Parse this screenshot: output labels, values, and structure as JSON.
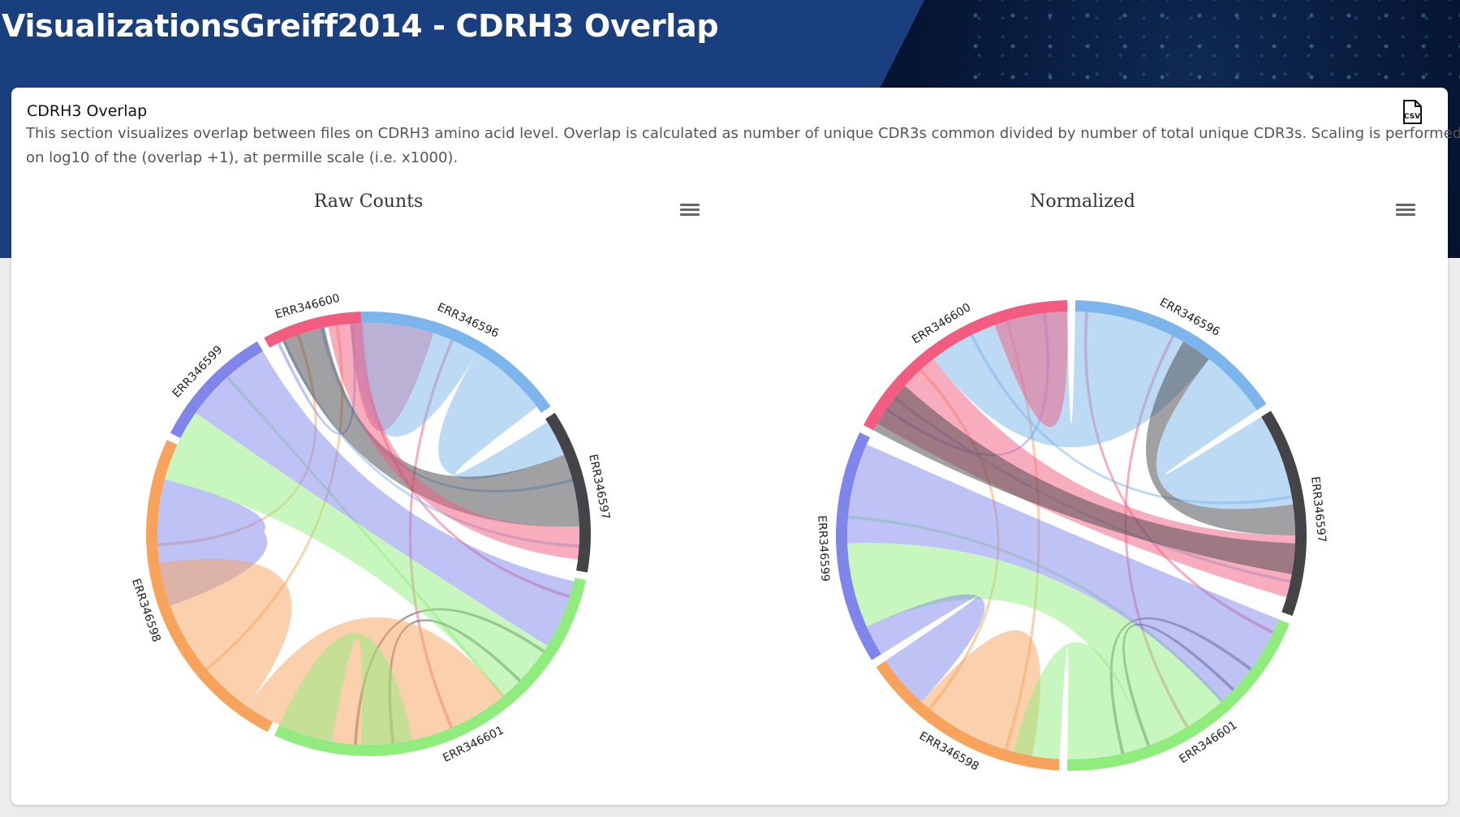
{
  "header": {
    "title": "VisualizationsGreiff2014 - CDRH3 Overlap"
  },
  "section": {
    "title": "CDRH3 Overlap",
    "description": "This section visualizes overlap between files on CDRH3 amino acid level. Overlap is calculated as number of unique CDR3s common divided by number of total unique CDR3s. Scaling is performed on log10 of the (overlap +1), at permille scale (i.e. x1000).",
    "csv_icon": "csv-file-icon",
    "menu_icon": "hamburger-menu-icon"
  },
  "colors": {
    "ERR346596": "#7cb5ec",
    "ERR346597": "#434348",
    "ERR346601": "#90ed7d",
    "ERR346598": "#f7a35c",
    "ERR346599": "#8085e9",
    "ERR346600": "#f15c80"
  },
  "chart_data": [
    {
      "type": "chord",
      "title": "Raw Counts",
      "nodes": [
        "ERR346596",
        "ERR346597",
        "ERR346601",
        "ERR346598",
        "ERR346599",
        "ERR346600"
      ],
      "arcs": [
        {
          "node": "ERR346596",
          "start": -5,
          "end": 55
        },
        {
          "node": "ERR346597",
          "start": 57,
          "end": 100
        },
        {
          "node": "ERR346601",
          "start": 102,
          "end": 205
        },
        {
          "node": "ERR346598",
          "start": 207,
          "end": 295
        },
        {
          "node": "ERR346599",
          "start": 297,
          "end": 330
        },
        {
          "node": "ERR346600",
          "start": 332,
          "end": 358
        }
      ],
      "links": [
        {
          "source": "ERR346596",
          "target": "ERR346596",
          "s": [
            -5,
            6
          ],
          "t": [
            6,
            18
          ],
          "color": "#f15c80"
        },
        {
          "source": "ERR346596",
          "target": "ERR346596",
          "s": [
            -5,
            30
          ],
          "t": [
            30,
            31
          ],
          "color": "#7cb5ec"
        },
        {
          "source": "ERR346596",
          "target": "ERR346597",
          "s": [
            31,
            53
          ],
          "t": [
            58,
            68
          ],
          "color": "#7cb5ec"
        },
        {
          "source": "ERR346597",
          "target": "ERR346600",
          "s": [
            68,
            88
          ],
          "t": [
            336,
            348
          ],
          "color": "#434348"
        },
        {
          "source": "ERR346600",
          "target": "ERR346597",
          "s": [
            349,
            358
          ],
          "t": [
            88,
            97
          ],
          "color": "#f15c80"
        },
        {
          "source": "ERR346599",
          "target": "ERR346601",
          "s": [
            305,
            330
          ],
          "t": [
            103,
            122
          ],
          "color": "#8085e9"
        },
        {
          "source": "ERR346601",
          "target": "ERR346599",
          "s": [
            122,
            140
          ],
          "t": [
            285,
            305
          ],
          "color": "#90ed7d"
        },
        {
          "source": "ERR346599",
          "target": "ERR346598",
          "s": [
            250,
            285
          ],
          "t": [
            262,
            282
          ],
          "color": "#8085e9"
        },
        {
          "source": "ERR346598",
          "target": "ERR346598",
          "s": [
            230,
            262
          ],
          "t": [
            215,
            230
          ],
          "color": "#f7a35c"
        },
        {
          "source": "ERR346598",
          "target": "ERR346601",
          "s": [
            182,
            215
          ],
          "t": [
            140,
            182
          ],
          "color": "#f7a35c"
        },
        {
          "source": "ERR346601",
          "target": "ERR346598",
          "s": [
            190,
            205
          ],
          "t": [
            168,
            182
          ],
          "color": "#90ed7d"
        }
      ]
    },
    {
      "type": "chord",
      "title": "Normalized",
      "nodes": [
        "ERR346596",
        "ERR346597",
        "ERR346601",
        "ERR346598",
        "ERR346599",
        "ERR346600"
      ],
      "arcs": [
        {
          "node": "ERR346596",
          "start": 1,
          "end": 56
        },
        {
          "node": "ERR346597",
          "start": 58,
          "end": 110
        },
        {
          "node": "ERR346601",
          "start": 112,
          "end": 181
        },
        {
          "node": "ERR346598",
          "start": 183,
          "end": 236
        },
        {
          "node": "ERR346599",
          "start": 238,
          "end": 296
        },
        {
          "node": "ERR346600",
          "start": 298,
          "end": 359
        }
      ],
      "links": [
        {
          "source": "ERR346596",
          "target": "ERR346600",
          "s": [
            1,
            38
          ],
          "t": [
            322,
            359
          ],
          "color": "#7cb5ec"
        },
        {
          "source": "ERR346600",
          "target": "ERR346600",
          "s": [
            340,
            359
          ],
          "t": [
            340,
            359
          ],
          "color": "#f15c80"
        },
        {
          "source": "ERR346596",
          "target": "ERR346597",
          "s": [
            38,
            56
          ],
          "t": [
            58,
            82
          ],
          "color": "#7cb5ec"
        },
        {
          "source": "ERR346597",
          "target": "ERR346596",
          "s": [
            82,
            90
          ],
          "t": [
            30,
            38
          ],
          "color": "#434348"
        },
        {
          "source": "ERR346600",
          "target": "ERR346597",
          "s": [
            300,
            322
          ],
          "t": [
            90,
            106
          ],
          "color": "#f15c80"
        },
        {
          "source": "ERR346597",
          "target": "ERR346600",
          "s": [
            92,
            100
          ],
          "t": [
            298,
            312
          ],
          "color": "#434348"
        },
        {
          "source": "ERR346599",
          "target": "ERR346601",
          "s": [
            268,
            294
          ],
          "t": [
            112,
            138
          ],
          "color": "#8085e9"
        },
        {
          "source": "ERR346601",
          "target": "ERR346599",
          "s": [
            138,
            160
          ],
          "t": [
            246,
            268
          ],
          "color": "#90ed7d"
        },
        {
          "source": "ERR346599",
          "target": "ERR346598",
          "s": [
            238,
            246
          ],
          "t": [
            222,
            236
          ],
          "color": "#8085e9"
        },
        {
          "source": "ERR346598",
          "target": "ERR346598",
          "s": [
            205,
            222
          ],
          "t": [
            190,
            205
          ],
          "color": "#f7a35c"
        },
        {
          "source": "ERR346601",
          "target": "ERR346598",
          "s": [
            160,
            181
          ],
          "t": [
            183,
            195
          ],
          "color": "#90ed7d"
        }
      ]
    }
  ]
}
